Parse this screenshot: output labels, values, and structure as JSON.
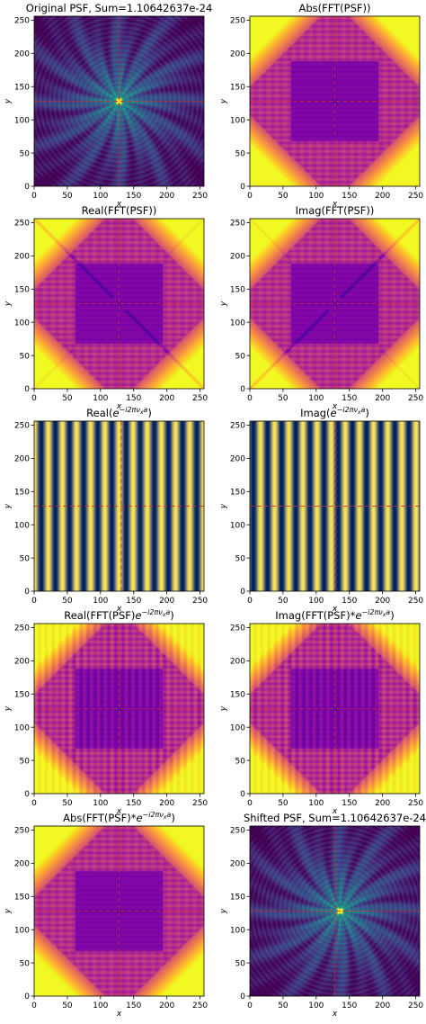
{
  "figure": {
    "colormaps": {
      "viridis": "viridis",
      "plasma": "plasma",
      "cividis": "cividis"
    }
  },
  "chart_data": [
    {
      "type": "heatmap",
      "id": "orig",
      "title": "Original PSF, Sum=1.10642637e-24",
      "xlabel": "x",
      "ylabel": "y",
      "xlim": [
        0,
        256
      ],
      "ylim": [
        0,
        256
      ],
      "xticks": [
        0,
        50,
        100,
        150,
        200,
        250
      ],
      "yticks": [
        0,
        50,
        100,
        150,
        200,
        250
      ],
      "colormap": "viridis",
      "pattern": "psf",
      "center": [
        128,
        128
      ],
      "crosshair": {
        "x": 128,
        "y": 128,
        "color": "#d62728"
      }
    },
    {
      "type": "heatmap",
      "id": "absfft",
      "title": "Abs(FFT(PSF))",
      "xlabel": "x",
      "ylabel": "y",
      "xlim": [
        0,
        256
      ],
      "ylim": [
        0,
        256
      ],
      "xticks": [
        0,
        50,
        100,
        150,
        200,
        250
      ],
      "yticks": [
        0,
        50,
        100,
        150,
        200,
        250
      ],
      "colormap": "plasma",
      "pattern": "fft",
      "crosshair": {
        "x": 128,
        "y": 128,
        "color": "#d62728"
      }
    },
    {
      "type": "heatmap",
      "id": "realfft",
      "title": "Real(FFT(PSF))",
      "xlabel": "x",
      "ylabel": "y",
      "xlim": [
        0,
        256
      ],
      "ylim": [
        0,
        256
      ],
      "xticks": [
        0,
        50,
        100,
        150,
        200,
        250
      ],
      "yticks": [
        0,
        50,
        100,
        150,
        200,
        250
      ],
      "colormap": "plasma",
      "pattern": "fft",
      "diagonal": "anti",
      "crosshair": {
        "x": 128,
        "y": 128,
        "color": "#d62728"
      }
    },
    {
      "type": "heatmap",
      "id": "imagfft",
      "title": "Imag(FFT(PSF))",
      "xlabel": "x",
      "ylabel": "y",
      "xlim": [
        0,
        256
      ],
      "ylim": [
        0,
        256
      ],
      "xticks": [
        0,
        50,
        100,
        150,
        200,
        250
      ],
      "yticks": [
        0,
        50,
        100,
        150,
        200,
        250
      ],
      "colormap": "plasma",
      "pattern": "fft",
      "diagonal": "main",
      "crosshair": {
        "x": 128,
        "y": 128,
        "color": "#d62728"
      }
    },
    {
      "type": "heatmap",
      "id": "realexp",
      "title": "Real(e^{−i2πν_x a})",
      "title_parts": [
        "Real(",
        "e",
        "−i2πν",
        "x",
        "a",
        ")"
      ],
      "xlabel": "x",
      "ylabel": "y",
      "xlim": [
        0,
        256
      ],
      "ylim": [
        0,
        256
      ],
      "xticks": [
        0,
        50,
        100,
        150,
        200,
        250
      ],
      "yticks": [
        0,
        50,
        100,
        150,
        200,
        250
      ],
      "colormap": "cividis",
      "pattern": "stripes",
      "stripe_period": 21.3,
      "stripe_phase": 0,
      "crosshair": {
        "x": 131,
        "y": 128,
        "color": "#d62728"
      }
    },
    {
      "type": "heatmap",
      "id": "imagexp",
      "title": "Imag(e^{−i2πν_x a})",
      "title_parts": [
        "Imag(",
        "e",
        "−i2πν",
        "x",
        "a",
        ")"
      ],
      "xlabel": "x",
      "ylabel": "y",
      "xlim": [
        0,
        256
      ],
      "ylim": [
        0,
        256
      ],
      "xticks": [
        0,
        50,
        100,
        150,
        200,
        250
      ],
      "yticks": [
        0,
        50,
        100,
        150,
        200,
        250
      ],
      "colormap": "cividis",
      "pattern": "stripes",
      "stripe_period": 21.3,
      "stripe_phase": 5.3,
      "crosshair": {
        "x": 128,
        "y": 128,
        "color": "#d62728"
      }
    },
    {
      "type": "heatmap",
      "id": "realprod",
      "title": "Real(FFT(PSF)e^{−i2πν_x a})",
      "title_parts": [
        "Real(FFT(PSF)",
        "e",
        "−i2πν",
        "x",
        "a",
        ")"
      ],
      "xlabel": "x",
      "ylabel": "y",
      "xlim": [
        0,
        256
      ],
      "ylim": [
        0,
        256
      ],
      "xticks": [
        0,
        50,
        100,
        150,
        200,
        250
      ],
      "yticks": [
        0,
        50,
        100,
        150,
        200,
        250
      ],
      "colormap": "plasma",
      "pattern": "fft",
      "vstripes": true,
      "crosshair": {
        "x": 128,
        "y": 128,
        "color": "#d62728"
      }
    },
    {
      "type": "heatmap",
      "id": "imagprod",
      "title": "Imag(FFT(PSF)*e^{−i2πν_x a})",
      "title_parts": [
        "Imag(FFT(PSF)*",
        "e",
        "−i2πν",
        "x",
        "a",
        ")"
      ],
      "xlabel": "x",
      "ylabel": "y",
      "xlim": [
        0,
        256
      ],
      "ylim": [
        0,
        256
      ],
      "xticks": [
        0,
        50,
        100,
        150,
        200,
        250
      ],
      "yticks": [
        0,
        50,
        100,
        150,
        200,
        250
      ],
      "colormap": "plasma",
      "pattern": "fft",
      "vstripes": true,
      "crosshair": {
        "x": 128,
        "y": 128,
        "color": "#d62728"
      }
    },
    {
      "type": "heatmap",
      "id": "absprod",
      "title": "Abs(FFT(PSF)*e^{−i2πν_x a})",
      "title_parts": [
        "Abs(FFT(PSF)*",
        "e",
        "−i2πν",
        "x",
        "a",
        ")"
      ],
      "xlabel": "x",
      "ylabel": "y",
      "xlim": [
        0,
        256
      ],
      "ylim": [
        0,
        256
      ],
      "xticks": [
        0,
        50,
        100,
        150,
        200,
        250
      ],
      "yticks": [
        0,
        50,
        100,
        150,
        200,
        250
      ],
      "colormap": "plasma",
      "pattern": "fft",
      "crosshair": {
        "x": 128,
        "y": 128,
        "color": "#d62728"
      }
    },
    {
      "type": "heatmap",
      "id": "shifted",
      "title": "Shifted PSF, Sum=1.10642637e-24",
      "xlabel": "x",
      "ylabel": "y",
      "xlim": [
        0,
        256
      ],
      "ylim": [
        0,
        256
      ],
      "xticks": [
        0,
        50,
        100,
        150,
        200,
        250
      ],
      "yticks": [
        0,
        50,
        100,
        150,
        200,
        250
      ],
      "colormap": "viridis",
      "pattern": "psf",
      "center": [
        136,
        128
      ],
      "crosshair": {
        "x": 128,
        "y": 128,
        "color": "#d62728"
      }
    }
  ]
}
